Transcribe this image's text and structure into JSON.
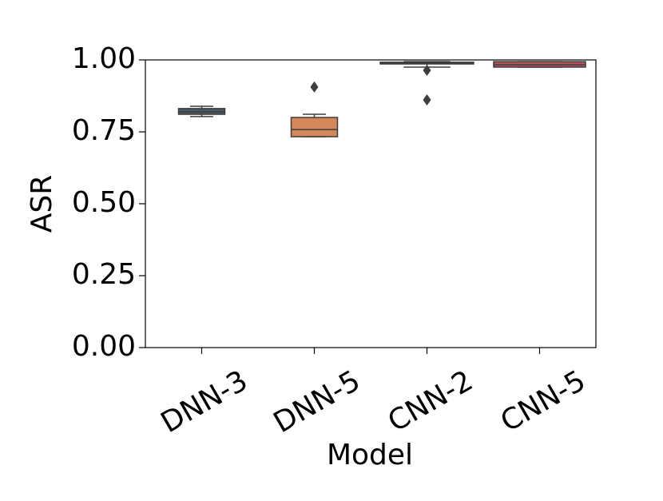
{
  "chart_data": {
    "type": "box",
    "x_label": "Model",
    "y_label": "ASR",
    "categories": [
      "DNN-3",
      "DNN-5",
      "CNN-2",
      "CNN-5"
    ],
    "boxes": [
      {
        "min": 0.803,
        "q1": 0.811,
        "median": 0.819,
        "q3": 0.831,
        "max": 0.839,
        "outliers": [],
        "color": "#4a5868"
      },
      {
        "min": 0.733,
        "q1": 0.733,
        "median": 0.758,
        "q3": 0.8,
        "max": 0.811,
        "outliers": [
          0.906
        ],
        "color": "#d4885a"
      },
      {
        "min": 0.975,
        "q1": 0.986,
        "median": 0.989,
        "q3": 0.992,
        "max": 0.994,
        "outliers": [
          0.964,
          0.861
        ],
        "color": "#4d5a55"
      },
      {
        "min": 0.975,
        "q1": 0.975,
        "median": 0.983,
        "q3": 0.994,
        "max": 0.994,
        "outliers": [],
        "color": "#b5535a"
      }
    ],
    "ylim": [
      0,
      1
    ],
    "yticks": [
      {
        "value": 0,
        "label": "0.00"
      },
      {
        "value": 0.25,
        "label": "0.25"
      },
      {
        "value": 0.5,
        "label": "0.50"
      },
      {
        "value": 0.75,
        "label": "0.75"
      },
      {
        "value": 1,
        "label": "1.00"
      }
    ]
  }
}
